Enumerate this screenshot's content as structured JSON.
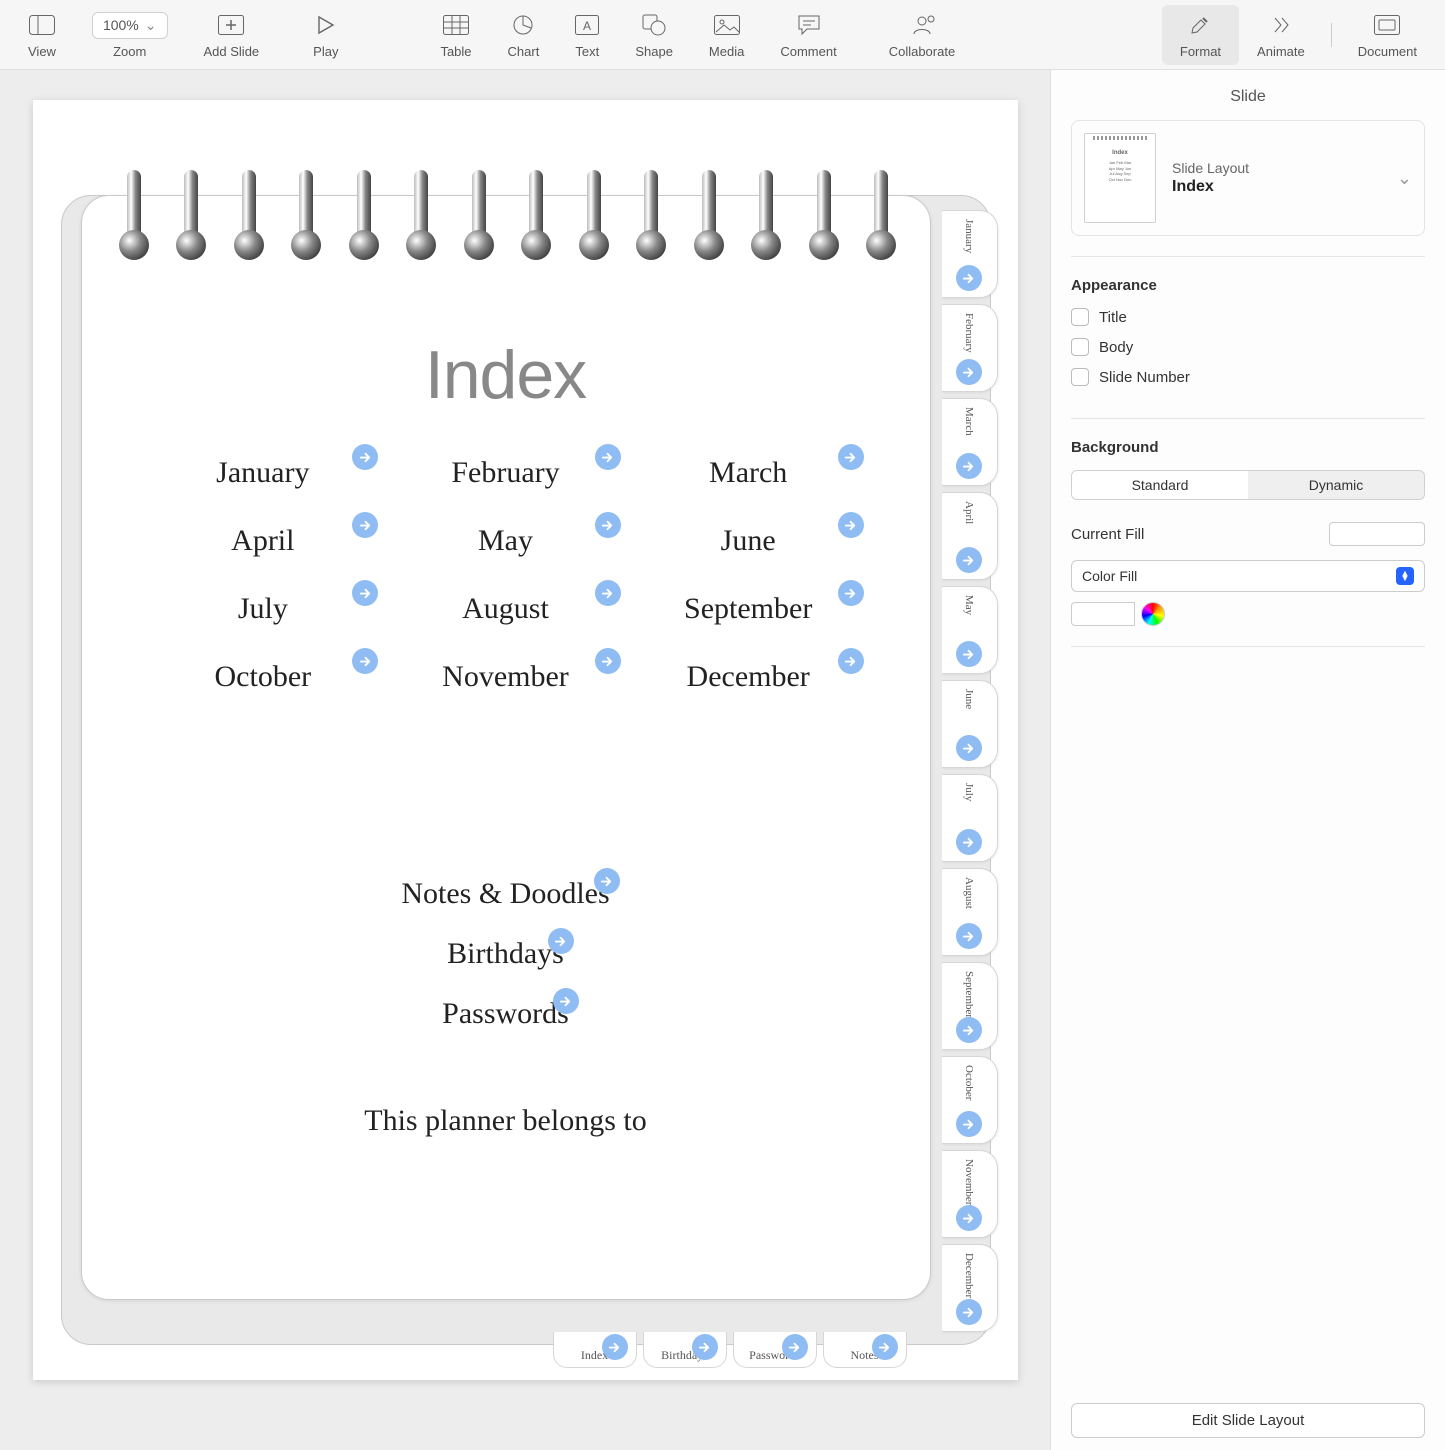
{
  "toolbar": {
    "view": "View",
    "zoom_label": "Zoom",
    "zoom_value": "100%",
    "add_slide": "Add Slide",
    "play": "Play",
    "table": "Table",
    "chart": "Chart",
    "text": "Text",
    "shape": "Shape",
    "media": "Media",
    "comment": "Comment",
    "collaborate": "Collaborate",
    "format": "Format",
    "animate": "Animate",
    "document": "Document"
  },
  "slide": {
    "title": "Index",
    "months": [
      "January",
      "February",
      "March",
      "April",
      "May",
      "June",
      "July",
      "August",
      "September",
      "October",
      "November",
      "December"
    ],
    "extras": [
      "Notes & Doodles",
      "Birthdays",
      "Passwords"
    ],
    "belongs_to": "This planner belongs to",
    "side_tabs": [
      "January",
      "February",
      "March",
      "April",
      "May",
      "June",
      "July",
      "August",
      "September",
      "October",
      "November",
      "December"
    ],
    "bottom_tabs": [
      "Index",
      "Birthdays",
      "Passwords",
      "Notes"
    ],
    "link_badge_color": "#8fbcf2"
  },
  "inspector": {
    "panel_title": "Slide",
    "layout_label": "Slide Layout",
    "layout_value": "Index",
    "appearance": {
      "heading": "Appearance",
      "title": "Title",
      "body": "Body",
      "slide_number": "Slide Number"
    },
    "background": {
      "heading": "Background",
      "seg": [
        "Standard",
        "Dynamic"
      ],
      "seg_active_index": 0,
      "current_fill_label": "Current Fill",
      "fill_type": "Color Fill",
      "current_fill_hex": "#ffffff"
    },
    "edit_layout": "Edit Slide Layout"
  }
}
